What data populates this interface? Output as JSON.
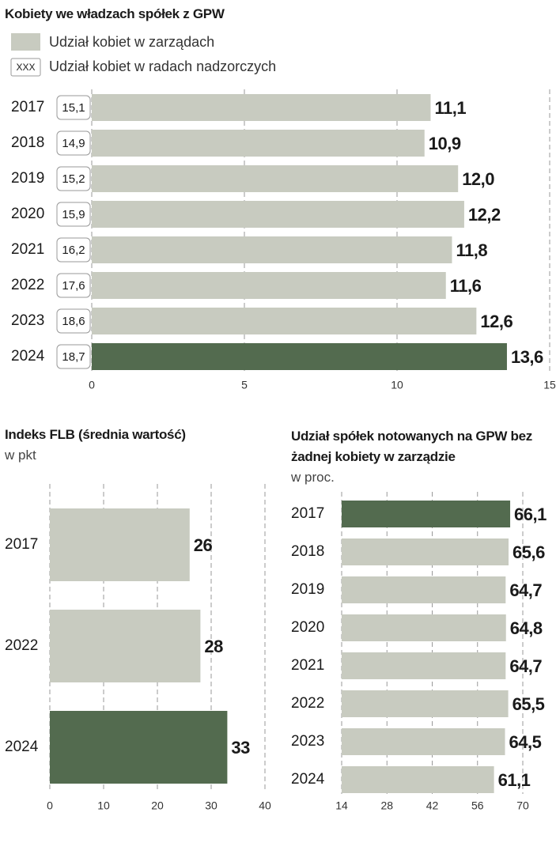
{
  "chart_data": [
    {
      "type": "hbar",
      "title": "Kobiety we władzach spółek z GPW",
      "categories": [
        "2017",
        "2018",
        "2019",
        "2020",
        "2021",
        "2022",
        "2023",
        "2024"
      ],
      "series": [
        {
          "name": "Udział kobiet w zarządach",
          "color": "#c8cbc0",
          "colors": [
            "#c8cbc0",
            "#c8cbc0",
            "#c8cbc0",
            "#c8cbc0",
            "#c8cbc0",
            "#c8cbc0",
            "#c8cbc0",
            "#536b4f"
          ],
          "values": [
            11.1,
            10.9,
            12.0,
            12.2,
            11.8,
            11.6,
            12.6,
            13.6
          ],
          "value_labels": [
            "11,1",
            "10,9",
            "12,0",
            "12,2",
            "11,8",
            "11,6",
            "12,6",
            "13,6"
          ]
        },
        {
          "name": "Udział kobiet w radach nadzorczych",
          "color": "#ffffff",
          "marker_label": "XXX",
          "values": [
            15.1,
            14.9,
            15.2,
            15.9,
            16.2,
            17.6,
            18.6,
            18.7
          ],
          "value_labels": [
            "15,1",
            "14,9",
            "15,2",
            "15,9",
            "16,2",
            "17,6",
            "18,6",
            "18,7"
          ]
        }
      ],
      "xlim": [
        0,
        15
      ],
      "xticks": [
        0,
        5,
        10,
        15
      ],
      "grid": true
    },
    {
      "type": "hbar",
      "title": "Indeks FLB (średnia wartość)",
      "subtitle": "w pkt",
      "categories": [
        "2017",
        "2022",
        "2024"
      ],
      "values": [
        26,
        28,
        33
      ],
      "colors": [
        "#c8cbc0",
        "#c8cbc0",
        "#536b4f"
      ],
      "xlim": [
        0,
        40
      ],
      "xticks": [
        0,
        10,
        20,
        30,
        40
      ],
      "grid": true
    },
    {
      "type": "hbar",
      "title": "Udział spółek notowanych na GPW bez żadnej kobiety w zarządzie",
      "subtitle": "w proc.",
      "categories": [
        "2017",
        "2018",
        "2019",
        "2020",
        "2021",
        "2022",
        "2023",
        "2024"
      ],
      "values": [
        66.1,
        65.6,
        64.7,
        64.8,
        64.7,
        65.5,
        64.5,
        61.1
      ],
      "value_labels": [
        "66,1",
        "65,6",
        "64,7",
        "64,8",
        "64,7",
        "65,5",
        "64,5",
        "61,1"
      ],
      "colors": [
        "#536b4f",
        "#c8cbc0",
        "#c8cbc0",
        "#c8cbc0",
        "#c8cbc0",
        "#c8cbc0",
        "#c8cbc0",
        "#c8cbc0"
      ],
      "xlim": [
        14,
        70
      ],
      "xticks": [
        14,
        28,
        42,
        56,
        70
      ],
      "grid": true
    }
  ]
}
